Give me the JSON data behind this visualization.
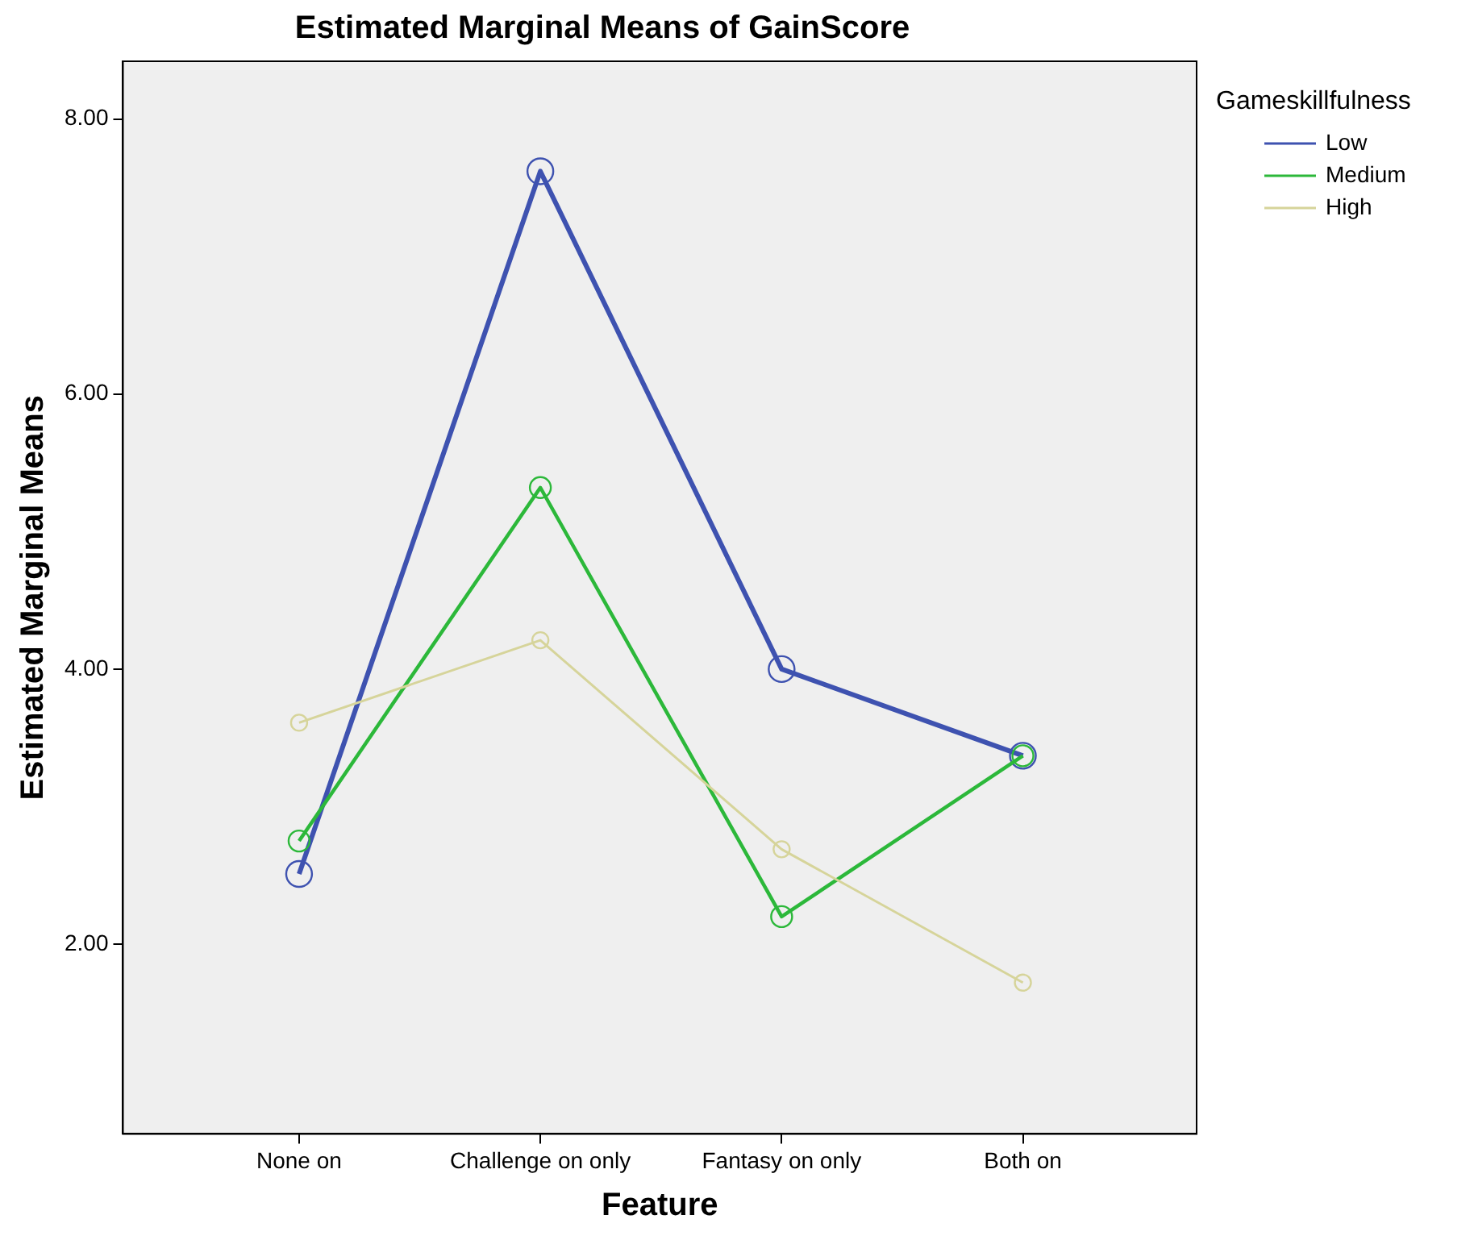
{
  "chart_data": {
    "type": "line",
    "title": "Estimated Marginal Means of GainScore",
    "xlabel": "Feature",
    "ylabel": "Estimated Marginal Means",
    "legend_title": "Gameskillfulness",
    "categories": [
      "None on",
      "Challenge on only",
      "Fantasy on only",
      "Both on"
    ],
    "series": [
      {
        "name": "Low",
        "color": "#3e52b0",
        "values": [
          2.51,
          7.62,
          4.0,
          3.37
        ]
      },
      {
        "name": "Medium",
        "color": "#2cb83a",
        "values": [
          2.75,
          5.32,
          2.2,
          3.37
        ]
      },
      {
        "name": "High",
        "color": "#d6d49a",
        "values": [
          3.61,
          4.21,
          2.69,
          1.72
        ]
      }
    ],
    "ylim": [
      0.62,
      8.42
    ],
    "yticks": [
      {
        "value": 2,
        "label": "2.00"
      },
      {
        "value": 4,
        "label": "4.00"
      },
      {
        "value": 6,
        "label": "6.00"
      },
      {
        "value": 8,
        "label": "8.00"
      }
    ],
    "grid": false,
    "legend": "top right",
    "marker": "circle",
    "line_style": "solid"
  }
}
